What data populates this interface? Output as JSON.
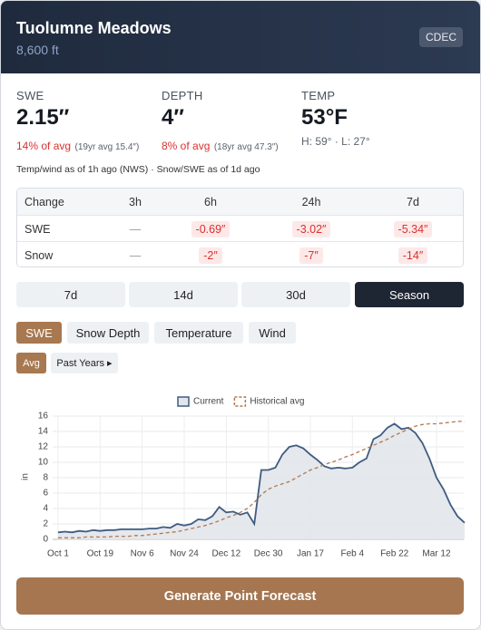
{
  "header": {
    "title": "Tuolumne Meadows",
    "subtitle": "8,600 ft",
    "badge": "CDEC"
  },
  "stats": [
    {
      "label": "SWE",
      "value": "2.15″",
      "pct": "14% of avg",
      "detail": "(19yr avg 15.4″)"
    },
    {
      "label": "DEPTH",
      "value": "4″",
      "pct": "8% of avg",
      "detail": "(18yr avg 47.3″)"
    },
    {
      "label": "TEMP",
      "value": "53°F",
      "detail": "H: 59° · L: 27°"
    }
  ],
  "note": "Temp/wind as of 1h ago (NWS) · Snow/SWE as of 1d ago",
  "table": {
    "header": [
      "Change",
      "3h",
      "6h",
      "24h",
      "7d"
    ],
    "rows": [
      [
        "SWE",
        "—",
        "-0.69″",
        "-3.02″",
        "-5.34″"
      ],
      [
        "Snow",
        "—",
        "-2″",
        "-7″",
        "-14″"
      ]
    ]
  },
  "ranges": [
    "7d",
    "14d",
    "30d",
    "Season"
  ],
  "tabs": [
    "SWE",
    "Snow Depth",
    "Temperature",
    "Wind"
  ],
  "toggles": [
    "Avg",
    "Past Years ▸"
  ],
  "button": "Generate Point Forecast",
  "chart_data": {
    "type": "line",
    "ylabel": "in",
    "grid": true,
    "categories": [
      "Oct 1",
      null,
      null,
      null,
      null,
      null,
      "Oct 19",
      null,
      null,
      null,
      null,
      null,
      "Nov 6",
      null,
      null,
      null,
      null,
      null,
      "Nov 24",
      null,
      null,
      null,
      null,
      null,
      "Dec 12",
      null,
      null,
      null,
      null,
      null,
      "Dec 30",
      null,
      null,
      null,
      null,
      null,
      "Jan 17",
      null,
      null,
      null,
      null,
      null,
      "Feb 4",
      null,
      null,
      null,
      null,
      null,
      "Feb 22",
      null,
      null,
      null,
      null,
      null,
      "Mar 12",
      null,
      null,
      null,
      null
    ],
    "ylim": [
      0,
      16
    ],
    "yticks": [
      0,
      2,
      4,
      6,
      8,
      10,
      12,
      14,
      16
    ],
    "series": [
      {
        "name": "Current",
        "color": "#3f5b80",
        "fill": "#e2e6ea",
        "values": [
          0.9,
          1.0,
          0.9,
          1.1,
          1.0,
          1.2,
          1.1,
          1.2,
          1.2,
          1.3,
          1.3,
          1.3,
          1.3,
          1.4,
          1.4,
          1.6,
          1.5,
          2.0,
          1.8,
          2.0,
          2.6,
          2.5,
          3.0,
          4.2,
          3.5,
          3.6,
          3.2,
          3.5,
          2.0,
          9.0,
          9.0,
          9.3,
          11.0,
          12.0,
          12.2,
          11.8,
          11.0,
          10.3,
          9.5,
          9.2,
          9.3,
          9.2,
          9.3,
          10.0,
          10.5,
          13.0,
          13.5,
          14.5,
          15.0,
          14.3,
          14.5,
          13.8,
          12.5,
          10.5,
          8.0,
          6.5,
          4.5,
          3.0,
          2.15
        ]
      },
      {
        "name": "Historical avg",
        "color": "#b07a52",
        "dashed": true,
        "values": [
          0.2,
          0.2,
          0.2,
          0.2,
          0.3,
          0.3,
          0.3,
          0.3,
          0.4,
          0.4,
          0.4,
          0.5,
          0.5,
          0.6,
          0.7,
          0.8,
          0.9,
          1.0,
          1.2,
          1.4,
          1.6,
          1.8,
          2.1,
          2.4,
          2.8,
          3.1,
          3.5,
          4.0,
          4.8,
          5.8,
          6.5,
          6.9,
          7.2,
          7.5,
          8.0,
          8.5,
          9.0,
          9.3,
          9.7,
          10.0,
          10.3,
          10.7,
          11.0,
          11.4,
          11.8,
          12.2,
          12.6,
          13.0,
          13.5,
          13.9,
          14.3,
          14.7,
          14.9,
          15.0,
          15.0,
          15.1,
          15.2,
          15.3,
          15.3
        ]
      }
    ]
  }
}
